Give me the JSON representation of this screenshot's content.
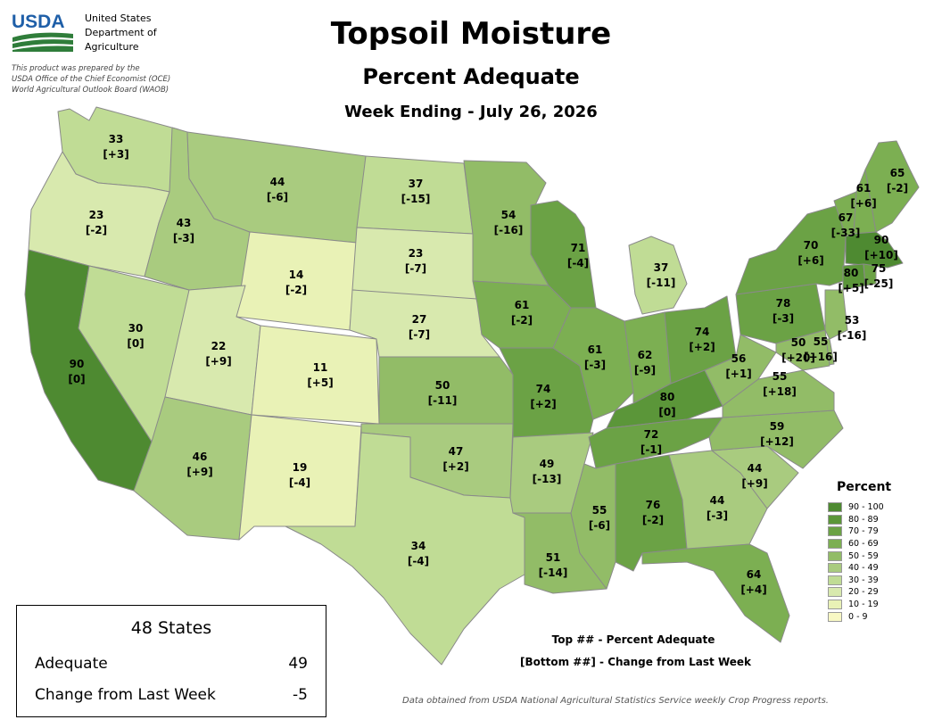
{
  "header": {
    "logo_text": "USDA",
    "agency_lines": [
      "United States",
      "Department of",
      "Agriculture"
    ],
    "prepared_lines": [
      "This product was prepared by the",
      "USDA Office of the Chief Economist (OCE)",
      "World Agricultural Outlook Board (WAOB)"
    ],
    "title": "Topsoil Moisture",
    "subtitle": "Percent Adequate",
    "week": "Week Ending - July 26, 2026"
  },
  "colors": {
    "90_100": "#4e8a31",
    "80_89": "#5b9639",
    "70_79": "#6ba245",
    "60_69": "#7caf52",
    "50_59": "#92bc67",
    "40_49": "#a9cb7f",
    "30_39": "#c0dc95",
    "20_29": "#d8e9ae",
    "10_19": "#e9f2b6",
    "0_9": "#f8f8c4"
  },
  "states": [
    {
      "code": "WA",
      "value": "33",
      "change": "[+3]"
    },
    {
      "code": "OR",
      "value": "23",
      "change": "[-2]"
    },
    {
      "code": "CA",
      "value": "90",
      "change": "[0]"
    },
    {
      "code": "NV",
      "value": "30",
      "change": "[0]"
    },
    {
      "code": "ID",
      "value": "43",
      "change": "[-3]"
    },
    {
      "code": "MT",
      "value": "44",
      "change": "[-6]"
    },
    {
      "code": "WY",
      "value": "14",
      "change": "[-2]"
    },
    {
      "code": "UT",
      "value": "22",
      "change": "[+9]"
    },
    {
      "code": "AZ",
      "value": "46",
      "change": "[+9]"
    },
    {
      "code": "CO",
      "value": "11",
      "change": "[+5]"
    },
    {
      "code": "NM",
      "value": "19",
      "change": "[-4]"
    },
    {
      "code": "ND",
      "value": "37",
      "change": "[-15]"
    },
    {
      "code": "SD",
      "value": "23",
      "change": "[-7]"
    },
    {
      "code": "NE",
      "value": "27",
      "change": "[-7]"
    },
    {
      "code": "KS",
      "value": "50",
      "change": "[-11]"
    },
    {
      "code": "OK",
      "value": "47",
      "change": "[+2]"
    },
    {
      "code": "TX",
      "value": "34",
      "change": "[-4]"
    },
    {
      "code": "MN",
      "value": "54",
      "change": "[-16]"
    },
    {
      "code": "IA",
      "value": "61",
      "change": "[-2]"
    },
    {
      "code": "MO",
      "value": "74",
      "change": "[+2]"
    },
    {
      "code": "AR",
      "value": "49",
      "change": "[-13]"
    },
    {
      "code": "LA",
      "value": "51",
      "change": "[-14]"
    },
    {
      "code": "WI",
      "value": "71",
      "change": "[-4]"
    },
    {
      "code": "MI",
      "value": "37",
      "change": "[-11]"
    },
    {
      "code": "IL",
      "value": "61",
      "change": "[-3]"
    },
    {
      "code": "IN",
      "value": "62",
      "change": "[-9]"
    },
    {
      "code": "OH",
      "value": "74",
      "change": "[+2]"
    },
    {
      "code": "KY",
      "value": "80",
      "change": "[0]"
    },
    {
      "code": "TN",
      "value": "72",
      "change": "[-1]"
    },
    {
      "code": "MS",
      "value": "55",
      "change": "[-6]"
    },
    {
      "code": "AL",
      "value": "76",
      "change": "[-2]"
    },
    {
      "code": "GA",
      "value": "44",
      "change": "[-3]"
    },
    {
      "code": "FL",
      "value": "64",
      "change": "[+4]"
    },
    {
      "code": "SC",
      "value": "44",
      "change": "[+9]"
    },
    {
      "code": "NC",
      "value": "59",
      "change": "[+12]"
    },
    {
      "code": "VA",
      "value": "55",
      "change": "[+18]"
    },
    {
      "code": "WV",
      "value": "56",
      "change": "[+1]"
    },
    {
      "code": "PA",
      "value": "78",
      "change": "[-3]"
    },
    {
      "code": "NY",
      "value": "70",
      "change": "[+6]"
    },
    {
      "code": "VT",
      "value": "61",
      "change": "[+6]"
    },
    {
      "code": "NH",
      "value": "67",
      "change": "[-33]"
    },
    {
      "code": "ME",
      "value": "65",
      "change": "[-2]"
    },
    {
      "code": "MA",
      "value": "90",
      "change": "[+10]"
    },
    {
      "code": "CT",
      "value": "80",
      "change": "[+5]"
    },
    {
      "code": "RI",
      "value": "75",
      "change": "[-25]"
    },
    {
      "code": "NJ",
      "value": "53",
      "change": "[-16]"
    },
    {
      "code": "DE",
      "value": "55",
      "change": "[+16]"
    },
    {
      "code": "MD",
      "value": "50",
      "change": "[+20]"
    }
  ],
  "legend": {
    "title": "Percent",
    "items": [
      {
        "label": "90 - 100",
        "color": "#4e8a31"
      },
      {
        "label": "80 - 89",
        "color": "#5b9639"
      },
      {
        "label": "70 - 79",
        "color": "#6ba245"
      },
      {
        "label": "60 - 69",
        "color": "#7caf52"
      },
      {
        "label": "50 - 59",
        "color": "#92bc67"
      },
      {
        "label": "40 - 49",
        "color": "#a9cb7f"
      },
      {
        "label": "30 - 39",
        "color": "#c0dc95"
      },
      {
        "label": "20 - 29",
        "color": "#d8e9ae"
      },
      {
        "label": "10 - 19",
        "color": "#e9f2b6"
      },
      {
        "label": "0 - 9",
        "color": "#f8f8c4"
      }
    ]
  },
  "summary": {
    "title": "48 States",
    "adequate_label": "Adequate",
    "adequate_value": "49",
    "change_label": "Change from Last Week",
    "change_value": "-5"
  },
  "key": {
    "top": "Top ## - Percent Adequate",
    "bottom": "[Bottom ##] - Change from Last Week"
  },
  "source": "Data obtained from USDA National Agricultural Statistics Service weekly Crop Progress reports."
}
